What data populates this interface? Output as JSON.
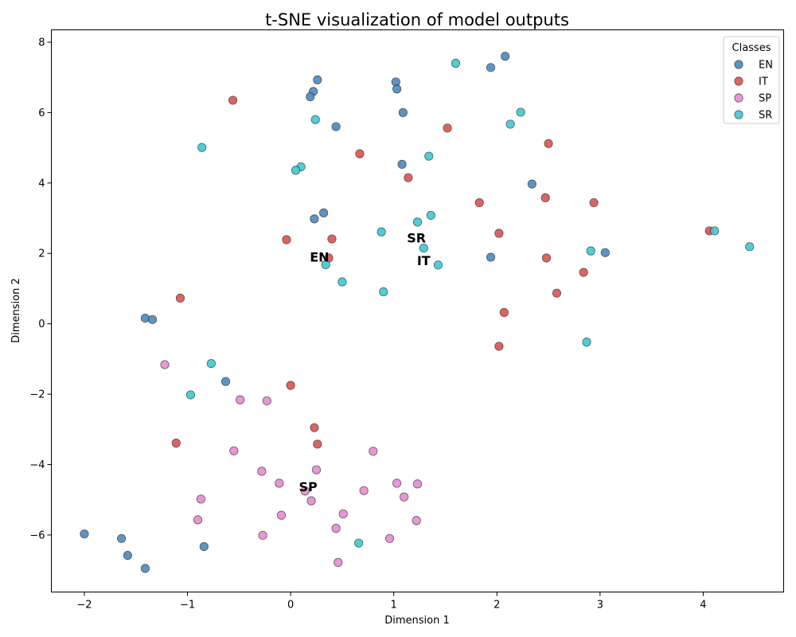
{
  "chart_data": {
    "type": "scatter",
    "title": "t-SNE visualization of model outputs",
    "xlabel": "Dimension 1",
    "ylabel": "Dimension 2",
    "xlim": [
      -2.32,
      4.78
    ],
    "ylim": [
      -7.62,
      8.35
    ],
    "xticks": [
      -2,
      -1,
      0,
      1,
      2,
      3,
      4
    ],
    "yticks": [
      -6,
      -4,
      -2,
      0,
      2,
      4,
      6,
      8
    ],
    "xtick_labels": [
      "−2",
      "−1",
      "0",
      "1",
      "2",
      "3",
      "4"
    ],
    "ytick_labels": [
      "−6",
      "−4",
      "−2",
      "0",
      "2",
      "4",
      "6",
      "8"
    ],
    "grid": false,
    "legend": {
      "title": "Classes",
      "placement": "top-right",
      "entries": [
        "EN",
        "IT",
        "SP",
        "SR"
      ]
    },
    "series": [
      {
        "name": "EN",
        "color": "#4c88bc",
        "points": [
          [
            2.08,
            7.6
          ],
          [
            1.94,
            7.28
          ],
          [
            0.26,
            6.93
          ],
          [
            0.22,
            6.6
          ],
          [
            0.19,
            6.45
          ],
          [
            1.02,
            6.87
          ],
          [
            1.03,
            6.67
          ],
          [
            1.09,
            6.0
          ],
          [
            0.44,
            5.6
          ],
          [
            1.08,
            4.53
          ],
          [
            2.34,
            3.97
          ],
          [
            0.32,
            3.15
          ],
          [
            0.23,
            2.98
          ],
          [
            3.05,
            2.02
          ],
          [
            1.94,
            1.89
          ],
          [
            -1.41,
            0.16
          ],
          [
            -1.34,
            0.12
          ],
          [
            -0.63,
            -1.64
          ],
          [
            -2.0,
            -5.97
          ],
          [
            -1.64,
            -6.1
          ],
          [
            -1.58,
            -6.58
          ],
          [
            -0.84,
            -6.33
          ],
          [
            -1.41,
            -6.95
          ]
        ]
      },
      {
        "name": "IT",
        "color": "#d9534f",
        "points": [
          [
            -0.56,
            6.35
          ],
          [
            1.52,
            5.56
          ],
          [
            0.67,
            4.83
          ],
          [
            2.5,
            5.12
          ],
          [
            1.14,
            4.15
          ],
          [
            1.83,
            3.44
          ],
          [
            2.47,
            3.58
          ],
          [
            2.94,
            3.44
          ],
          [
            -0.04,
            2.39
          ],
          [
            0.4,
            2.41
          ],
          [
            2.02,
            2.57
          ],
          [
            2.48,
            1.87
          ],
          [
            2.84,
            1.46
          ],
          [
            4.06,
            2.64
          ],
          [
            0.37,
            1.87
          ],
          [
            -1.07,
            0.73
          ],
          [
            2.58,
            0.87
          ],
          [
            2.07,
            0.32
          ],
          [
            2.02,
            -0.64
          ],
          [
            0.0,
            -1.75
          ],
          [
            0.23,
            -2.95
          ],
          [
            0.26,
            -3.42
          ],
          [
            -1.11,
            -3.39
          ]
        ]
      },
      {
        "name": "SP",
        "color": "#e38cd0",
        "points": [
          [
            -1.22,
            -1.16
          ],
          [
            -0.49,
            -2.16
          ],
          [
            -0.23,
            -2.19
          ],
          [
            -0.55,
            -3.61
          ],
          [
            0.8,
            -3.62
          ],
          [
            -0.28,
            -4.19
          ],
          [
            0.25,
            -4.15
          ],
          [
            -0.11,
            -4.53
          ],
          [
            0.71,
            -4.74
          ],
          [
            1.03,
            -4.53
          ],
          [
            1.23,
            -4.55
          ],
          [
            1.1,
            -4.92
          ],
          [
            0.14,
            -4.75
          ],
          [
            0.2,
            -5.03
          ],
          [
            -0.87,
            -4.98
          ],
          [
            0.51,
            -5.4
          ],
          [
            -0.09,
            -5.44
          ],
          [
            -0.9,
            -5.57
          ],
          [
            1.22,
            -5.59
          ],
          [
            0.44,
            -5.81
          ],
          [
            -0.27,
            -6.01
          ],
          [
            0.96,
            -6.1
          ],
          [
            0.46,
            -6.78
          ]
        ]
      },
      {
        "name": "SR",
        "color": "#3cc9d2",
        "points": [
          [
            1.6,
            7.4
          ],
          [
            0.24,
            5.8
          ],
          [
            2.23,
            6.01
          ],
          [
            2.13,
            5.67
          ],
          [
            -0.86,
            5.01
          ],
          [
            1.34,
            4.76
          ],
          [
            0.1,
            4.46
          ],
          [
            0.05,
            4.36
          ],
          [
            1.36,
            3.08
          ],
          [
            1.23,
            2.89
          ],
          [
            0.88,
            2.61
          ],
          [
            1.29,
            2.15
          ],
          [
            1.43,
            1.67
          ],
          [
            0.34,
            1.68
          ],
          [
            0.5,
            1.19
          ],
          [
            0.9,
            0.91
          ],
          [
            2.91,
            2.07
          ],
          [
            4.11,
            2.64
          ],
          [
            4.45,
            2.19
          ],
          [
            2.87,
            -0.52
          ],
          [
            -0.77,
            -1.13
          ],
          [
            -0.97,
            -2.02
          ],
          [
            0.66,
            -6.23
          ]
        ]
      }
    ],
    "annotations": [
      {
        "text": "EN",
        "x": 0.28,
        "y": 1.9
      },
      {
        "text": "IT",
        "x": 1.29,
        "y": 1.8
      },
      {
        "text": "SP",
        "x": 0.17,
        "y": -4.62
      },
      {
        "text": "SR",
        "x": 1.22,
        "y": 2.45
      }
    ]
  }
}
